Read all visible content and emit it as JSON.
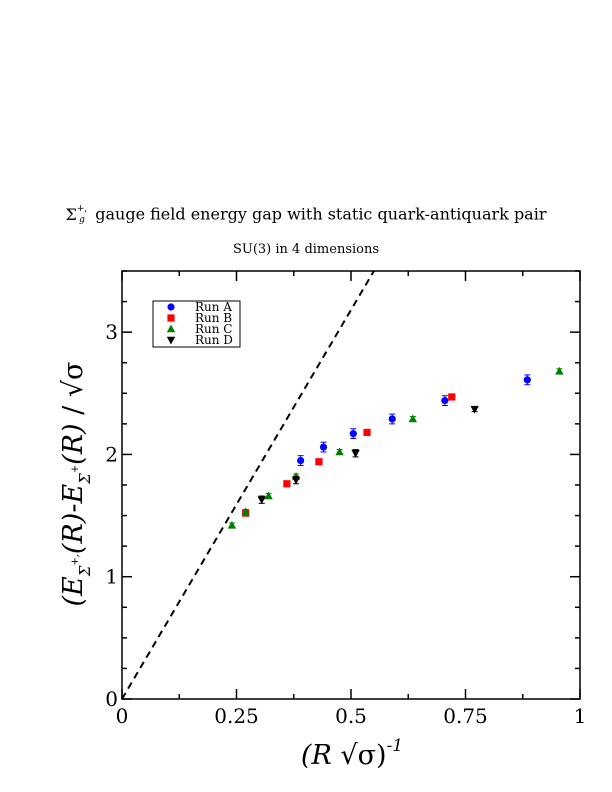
{
  "title_prefix": "Σ",
  "title_prefix_sup": "+,",
  "title_prefix_sub": "g",
  "title": "gauge field energy gap with static quark-antiquark pair",
  "subtitle": "SU(3) in 4 dimensions",
  "chart_data": {
    "type": "scatter",
    "xlabel": "(R √σ)^-1",
    "ylabel": "(E_Σg+'(R)-E_Σg+(R)) / √σ",
    "xlim": [
      0,
      1
    ],
    "ylim": [
      0,
      3.5
    ],
    "x_ticks": [
      0,
      0.25,
      0.5,
      0.75,
      1
    ],
    "x_tick_labels": [
      "0",
      "0.25",
      "0.5",
      "0.75",
      "1"
    ],
    "y_ticks": [
      0,
      1,
      2,
      3
    ],
    "y_tick_labels": [
      "0",
      "1",
      "2",
      "3"
    ],
    "legend_position": "top-left",
    "grid": false,
    "reference_line": {
      "style": "dashed",
      "points": [
        [
          0,
          0
        ],
        [
          0.55,
          3.5
        ]
      ]
    },
    "series": [
      {
        "name": "Run A",
        "color": "#0000ff",
        "marker": "circle",
        "points": [
          [
            0.39,
            1.95,
            0.04
          ],
          [
            0.44,
            2.06,
            0.04
          ],
          [
            0.505,
            2.17,
            0.04
          ],
          [
            0.59,
            2.29,
            0.04
          ],
          [
            0.705,
            2.44,
            0.04
          ],
          [
            0.885,
            2.61,
            0.04
          ]
        ]
      },
      {
        "name": "Run B",
        "color": "#ff0000",
        "marker": "square",
        "points": [
          [
            0.27,
            1.52,
            0.02
          ],
          [
            0.36,
            1.76,
            0.02
          ],
          [
            0.43,
            1.94,
            0.02
          ],
          [
            0.535,
            2.18,
            0.02
          ],
          [
            0.72,
            2.47,
            0.02
          ]
        ]
      },
      {
        "name": "Run C",
        "color": "#008000",
        "marker": "triangle-up",
        "points": [
          [
            0.24,
            1.42,
            0.02
          ],
          [
            0.27,
            1.53,
            0.02
          ],
          [
            0.32,
            1.66,
            0.02
          ],
          [
            0.38,
            1.82,
            0.02
          ],
          [
            0.475,
            2.02,
            0.02
          ],
          [
            0.635,
            2.29,
            0.02
          ],
          [
            0.955,
            2.68,
            0.02
          ]
        ]
      },
      {
        "name": "Run D",
        "color": "#000000",
        "marker": "triangle-down",
        "points": [
          [
            0.305,
            1.63,
            0.03
          ],
          [
            0.38,
            1.79,
            0.03
          ],
          [
            0.51,
            2.01,
            0.03
          ],
          [
            0.77,
            2.37,
            0.02
          ]
        ]
      }
    ]
  }
}
